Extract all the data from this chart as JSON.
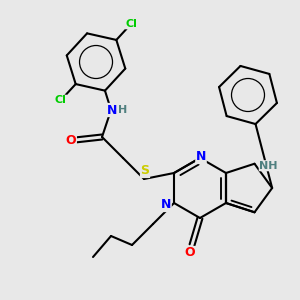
{
  "bg_color": "#e8e8e8",
  "atom_colors": {
    "N": "#0000ff",
    "O": "#ff0000",
    "S": "#cccc00",
    "Cl": "#00cc00",
    "C": "#000000",
    "H": "#508080"
  },
  "bond_color": "#000000",
  "bond_width": 1.5,
  "fig_size": [
    3.0,
    3.0
  ],
  "dpi": 100
}
